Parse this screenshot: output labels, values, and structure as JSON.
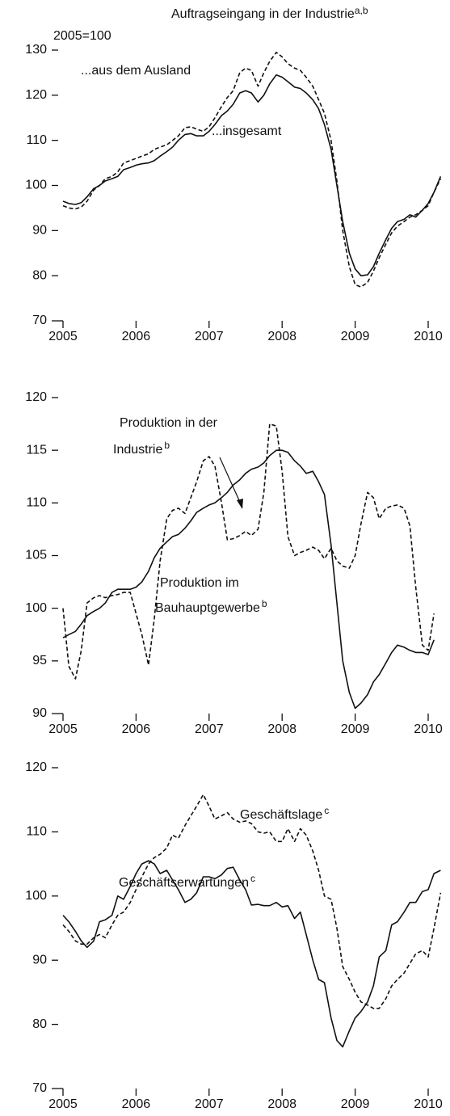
{
  "chart_data": [
    {
      "type": "line",
      "title": "Auftragseingang in der Industrie",
      "title_sup": "a,b",
      "note": "2005=100",
      "x": [
        2005,
        2005.08,
        2005.17,
        2005.25,
        2005.33,
        2005.42,
        2005.5,
        2005.58,
        2005.67,
        2005.75,
        2005.83,
        2005.92,
        2006,
        2006.08,
        2006.17,
        2006.25,
        2006.33,
        2006.42,
        2006.5,
        2006.58,
        2006.67,
        2006.75,
        2006.83,
        2006.92,
        2007,
        2007.08,
        2007.17,
        2007.25,
        2007.33,
        2007.42,
        2007.5,
        2007.58,
        2007.67,
        2007.75,
        2007.83,
        2007.92,
        2008,
        2008.08,
        2008.17,
        2008.25,
        2008.33,
        2008.42,
        2008.5,
        2008.58,
        2008.67,
        2008.75,
        2008.83,
        2008.92,
        2009,
        2009.08,
        2009.17,
        2009.25,
        2009.33,
        2009.42,
        2009.5,
        2009.58,
        2009.67,
        2009.75,
        2009.83,
        2009.92,
        2010,
        2010.08,
        2010.17
      ],
      "xlim": [
        2005,
        2010.25
      ],
      "xticks": [
        2005,
        2006,
        2007,
        2008,
        2009,
        2010
      ],
      "ylim": [
        70,
        130
      ],
      "yticks": [
        70,
        80,
        90,
        100,
        110,
        120,
        130
      ],
      "series": [
        {
          "name": "...aus dem Ausland",
          "color": "#111111",
          "dashed": true,
          "values": [
            95.5,
            95,
            94.8,
            95.2,
            96.5,
            99,
            100,
            101.5,
            102,
            103,
            105,
            105.5,
            106,
            106.5,
            107,
            108,
            108.5,
            109,
            110,
            111,
            112.8,
            113,
            112.5,
            112,
            113,
            115,
            117.5,
            119.5,
            121,
            125,
            126,
            125.5,
            122,
            125,
            127.5,
            129.5,
            128.5,
            127,
            126,
            125.5,
            124,
            122,
            119,
            116,
            110,
            101,
            90,
            82,
            78,
            77.5,
            78.5,
            81,
            84,
            87,
            89.5,
            91,
            92,
            93,
            93.5,
            94.5,
            95.5,
            98.5,
            101.5
          ]
        },
        {
          "name": "...insgesamt",
          "color": "#111111",
          "dashed": false,
          "values": [
            96.5,
            96,
            95.8,
            96.2,
            97.5,
            99.3,
            100,
            101,
            101.5,
            102,
            103.5,
            104,
            104.5,
            104.8,
            105,
            105.5,
            106.5,
            107.5,
            108.5,
            110,
            111.3,
            111.5,
            111,
            111,
            112,
            113.5,
            115.5,
            116.5,
            118,
            120.5,
            121,
            120.5,
            118.5,
            120,
            122.5,
            124.5,
            124,
            123,
            121.8,
            121.5,
            120.5,
            119,
            117,
            113.5,
            108,
            100,
            92,
            85,
            81.5,
            80,
            80.2,
            82,
            85,
            88,
            90.5,
            92,
            92.5,
            93.5,
            93,
            94.5,
            96,
            98.5,
            102
          ]
        }
      ]
    },
    {
      "type": "line",
      "x": [
        2005,
        2005.08,
        2005.17,
        2005.25,
        2005.33,
        2005.42,
        2005.5,
        2005.58,
        2005.67,
        2005.75,
        2005.83,
        2005.92,
        2006,
        2006.08,
        2006.17,
        2006.25,
        2006.33,
        2006.42,
        2006.5,
        2006.58,
        2006.67,
        2006.75,
        2006.83,
        2006.92,
        2007,
        2007.08,
        2007.17,
        2007.25,
        2007.33,
        2007.42,
        2007.5,
        2007.58,
        2007.67,
        2007.75,
        2007.83,
        2007.92,
        2008,
        2008.08,
        2008.17,
        2008.25,
        2008.33,
        2008.42,
        2008.5,
        2008.58,
        2008.67,
        2008.75,
        2008.83,
        2008.92,
        2009,
        2009.08,
        2009.17,
        2009.25,
        2009.33,
        2009.42,
        2009.5,
        2009.58,
        2009.67,
        2009.75,
        2009.83,
        2009.92,
        2010,
        2010.08
      ],
      "xlim": [
        2005,
        2010.25
      ],
      "xticks": [
        2005,
        2006,
        2007,
        2008,
        2009,
        2010
      ],
      "ylim": [
        90,
        120
      ],
      "yticks": [
        90,
        95,
        100,
        105,
        110,
        115,
        120
      ],
      "series": [
        {
          "name_lines": [
            "Produktion in der",
            "Industrie"
          ],
          "name_sup": "b",
          "color": "#111111",
          "dashed": false,
          "values": [
            97.2,
            97.5,
            97.8,
            98.5,
            99.3,
            99.7,
            100,
            100.5,
            101.5,
            101.8,
            101.8,
            101.8,
            102,
            102.5,
            103.5,
            104.8,
            105.7,
            106.3,
            106.8,
            107,
            107.6,
            108.3,
            109.1,
            109.5,
            109.8,
            110,
            110.5,
            111,
            111.7,
            112.2,
            112.8,
            113.2,
            113.4,
            113.8,
            114.5,
            115,
            115,
            114.8,
            114,
            113.5,
            112.8,
            113,
            112,
            110.8,
            106,
            100.5,
            95,
            92,
            90.5,
            91,
            91.8,
            93,
            93.7,
            94.8,
            95.8,
            96.5,
            96.3,
            96,
            95.8,
            95.8,
            95.6,
            97
          ]
        },
        {
          "name_lines": [
            "Produktion im",
            "Bauhauptgewerbe"
          ],
          "name_sup": "b",
          "color": "#111111",
          "dashed": true,
          "values": [
            100,
            94.5,
            93.3,
            96,
            100.5,
            101,
            101.2,
            101,
            101.2,
            101.3,
            101.5,
            101.5,
            99.5,
            97.5,
            94.6,
            99,
            104.5,
            108.5,
            109.3,
            109.5,
            109,
            110.5,
            112,
            114,
            114.4,
            113.5,
            110,
            106.5,
            106.6,
            106.9,
            107.3,
            106.9,
            107.5,
            111,
            117.5,
            117.3,
            113,
            106.8,
            105,
            105.3,
            105.5,
            105.8,
            105.5,
            104.7,
            105.7,
            104.5,
            104,
            103.8,
            105,
            108,
            111,
            110.5,
            108.5,
            109.5,
            109.7,
            109.8,
            109.5,
            107.8,
            102,
            96.5,
            96,
            99.5
          ]
        }
      ]
    },
    {
      "type": "line",
      "x": [
        2005,
        2005.08,
        2005.17,
        2005.25,
        2005.33,
        2005.42,
        2005.5,
        2005.58,
        2005.67,
        2005.75,
        2005.83,
        2005.92,
        2006,
        2006.08,
        2006.17,
        2006.25,
        2006.33,
        2006.42,
        2006.5,
        2006.58,
        2006.67,
        2006.75,
        2006.83,
        2006.92,
        2007,
        2007.08,
        2007.17,
        2007.25,
        2007.33,
        2007.42,
        2007.5,
        2007.58,
        2007.67,
        2007.75,
        2007.83,
        2007.92,
        2008,
        2008.08,
        2008.17,
        2008.25,
        2008.33,
        2008.42,
        2008.5,
        2008.58,
        2008.67,
        2008.75,
        2008.83,
        2008.92,
        2009,
        2009.08,
        2009.17,
        2009.25,
        2009.33,
        2009.42,
        2009.5,
        2009.58,
        2009.67,
        2009.75,
        2009.83,
        2009.92,
        2010,
        2010.08,
        2010.17
      ],
      "xlim": [
        2005,
        2010.25
      ],
      "xticks": [
        2005,
        2006,
        2007,
        2008,
        2009,
        2010
      ],
      "ylim": [
        70,
        120
      ],
      "yticks": [
        70,
        80,
        90,
        100,
        110,
        120
      ],
      "series": [
        {
          "name": "Geschäftslage",
          "name_sup": "c",
          "color": "#111111",
          "dashed": true,
          "values": [
            95.5,
            94.5,
            93,
            92.5,
            92.5,
            93.5,
            94,
            93.5,
            95.5,
            97,
            97.5,
            99,
            101,
            103,
            105,
            106,
            106.5,
            107.5,
            109.5,
            109,
            111,
            112.5,
            114,
            115.8,
            114,
            112,
            112.5,
            113,
            112,
            111.5,
            111.7,
            111.3,
            110,
            109.8,
            110,
            108.5,
            108.5,
            110.5,
            108.5,
            110.5,
            109.5,
            107,
            104,
            100,
            99.5,
            95,
            89,
            87,
            85,
            83.5,
            83,
            82.5,
            82.5,
            84,
            86,
            87,
            88,
            89.5,
            91,
            91.5,
            90.5,
            95,
            100.5
          ]
        },
        {
          "name": "Geschäftserwartungen",
          "name_sup": "c",
          "color": "#111111",
          "dashed": false,
          "values": [
            97,
            96,
            94.5,
            93,
            92,
            93,
            96,
            96.3,
            97,
            100,
            99.5,
            101.5,
            103.5,
            105,
            105.5,
            105,
            103.5,
            104,
            102.5,
            101,
            99,
            99.5,
            100.5,
            103,
            103,
            102.7,
            103.3,
            104.3,
            104.5,
            102.5,
            101,
            98.6,
            98.7,
            98.5,
            98.5,
            99,
            98.3,
            98.5,
            96.5,
            97.5,
            94,
            90,
            87,
            86.5,
            81,
            77.5,
            76.5,
            79,
            81,
            82,
            83.5,
            86,
            90.5,
            91.5,
            95.5,
            96,
            97.5,
            99,
            99,
            100.7,
            101,
            103.5,
            104
          ]
        }
      ]
    }
  ]
}
